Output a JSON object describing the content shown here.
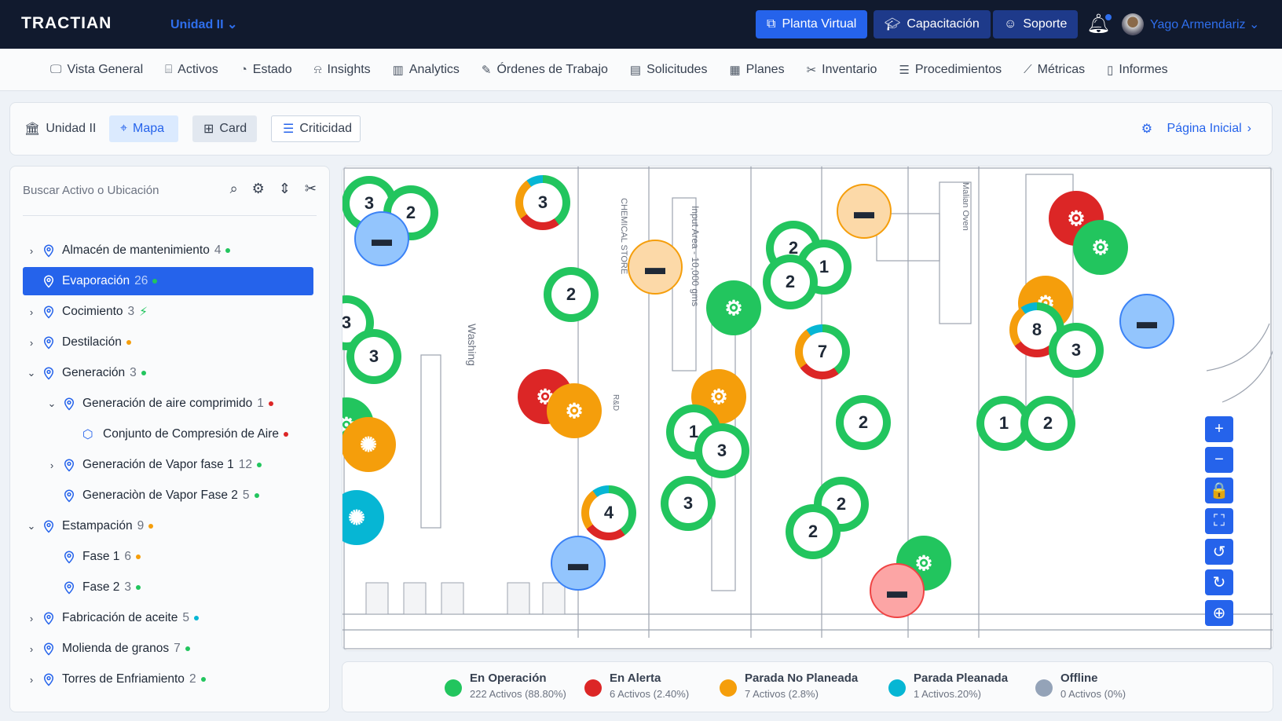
{
  "header": {
    "logo": "TRACTIAN",
    "unit": "Unidad II",
    "buttons": [
      {
        "label": "Planta Virtual",
        "color": "#2563eb"
      },
      {
        "label": "Capacitación",
        "color": "#1e3a8a"
      },
      {
        "label": "Soporte",
        "color": "#1e3a8a"
      }
    ],
    "user": "Yago Armendariz"
  },
  "nav": [
    {
      "label": "Vista General",
      "icon": "monitor-icon",
      "g": "🖵"
    },
    {
      "label": "Activos",
      "icon": "hierarchy-icon",
      "g": "⌸"
    },
    {
      "label": "Estado",
      "icon": "gauge-icon",
      "g": "◔"
    },
    {
      "label": "Insights",
      "icon": "siren-icon",
      "g": "⍾"
    },
    {
      "label": "Analytics",
      "icon": "bar-chart-icon",
      "g": "▥"
    },
    {
      "label": "Órdenes de Trabajo",
      "icon": "edit-icon",
      "g": "✎"
    },
    {
      "label": "Solicitudes",
      "icon": "clipboard-icon",
      "g": "▤"
    },
    {
      "label": "Planes",
      "icon": "calendar-clock-icon",
      "g": "▦"
    },
    {
      "label": "Inventario",
      "icon": "tools-icon",
      "g": "✂"
    },
    {
      "label": "Procedimientos",
      "icon": "checklist-icon",
      "g": "☰"
    },
    {
      "label": "Métricas",
      "icon": "line-chart-icon",
      "g": "⟋"
    },
    {
      "label": "Informes",
      "icon": "document-icon",
      "g": "▯"
    }
  ],
  "viewbar": {
    "unit": "Unidad II",
    "mapa": "Mapa",
    "card": "Card",
    "criticidad": "Criticidad",
    "home": "Página Inicial"
  },
  "sidebar": {
    "search_placeholder": "Buscar Activo o Ubicación",
    "items": [
      {
        "label": "Almacén de mantenimiento",
        "count": "4",
        "status": "green",
        "chev": "›",
        "level": 0
      },
      {
        "label": "Evaporación",
        "count": "26",
        "status": "green",
        "chev": "",
        "level": 0,
        "selected": true
      },
      {
        "label": "Cocimiento",
        "count": "3",
        "status": "bolt",
        "chev": "›",
        "level": 0
      },
      {
        "label": "Destilación",
        "count": "",
        "status": "orange",
        "chev": "›",
        "level": 0
      },
      {
        "label": "Generación",
        "count": "3",
        "status": "green",
        "chev": "⌄",
        "level": 0
      },
      {
        "label": "Generación de aire comprimido",
        "count": "1",
        "status": "red",
        "chev": "⌄",
        "level": 1
      },
      {
        "label": "Conjunto de Compresión de Aire",
        "count": "",
        "status": "red",
        "chev": "",
        "level": 2,
        "asset": true
      },
      {
        "label": "Generación de Vapor fase 1",
        "count": "12",
        "status": "green",
        "chev": "›",
        "level": 1
      },
      {
        "label": "Generaciòn de Vapor Fase 2",
        "count": "5",
        "status": "green",
        "chev": "",
        "level": 1
      },
      {
        "label": "Estampación",
        "count": "9",
        "status": "orange",
        "chev": "⌄",
        "level": 0
      },
      {
        "label": "Fase 1",
        "count": "6",
        "status": "orange",
        "chev": "",
        "level": 1
      },
      {
        "label": "Fase 2",
        "count": "3",
        "status": "green",
        "chev": "",
        "level": 1
      },
      {
        "label": "Fabricación de aceite",
        "count": "5",
        "status": "cyan",
        "chev": "›",
        "level": 0
      },
      {
        "label": "Molienda de granos",
        "count": "7",
        "status": "green",
        "chev": "›",
        "level": 0
      },
      {
        "label": "Torres de Enfriamiento",
        "count": "2",
        "status": "green",
        "chev": "›",
        "level": 0
      }
    ]
  },
  "colors": {
    "green": "#22c55e",
    "red": "#dc2626",
    "orange": "#f59e0b",
    "cyan": "#06b6d4",
    "gray": "#94a3b8",
    "blue": "#93c5fd",
    "lightorange": "#fcd9a8",
    "pink": "#fca5a5",
    "accent": "#2563eb"
  },
  "legend": [
    {
      "label": "En Operación",
      "sub": "222 Activos (88.80%)",
      "color": "#22c55e"
    },
    {
      "label": "En Alerta",
      "sub": "6 Activos (2.40%)",
      "color": "#dc2626"
    },
    {
      "label": "Parada No Planeada",
      "sub": "7 Activos (2.8%)",
      "color": "#f59e0b"
    },
    {
      "label": "Parada Pleanada",
      "sub": "1 Activos.20%)",
      "color": "#06b6d4"
    },
    {
      "label": "Offline",
      "sub": "0 Activos (0%)",
      "color": "#94a3b8"
    }
  ],
  "map": {
    "labels": [
      "Washing",
      "CHEMICAL STORE",
      "Input Area - 10,000 gms",
      "Malian Oven",
      "R&D"
    ],
    "markers": [
      {
        "n": "3",
        "s": "green"
      },
      {
        "n": "2",
        "s": "green"
      },
      {
        "n": "",
        "s": "blue",
        "i": "router"
      },
      {
        "n": "3",
        "s": "pie"
      },
      {
        "n": "",
        "s": "lightorange",
        "i": "router"
      },
      {
        "n": "2",
        "s": "green"
      },
      {
        "n": "",
        "s": "lightorange",
        "i": "router"
      },
      {
        "n": "2",
        "s": "green"
      },
      {
        "n": "1",
        "s": "green"
      },
      {
        "n": "2",
        "s": "green"
      },
      {
        "n": "",
        "s": "green",
        "i": "motor"
      },
      {
        "n": "7",
        "s": "pie"
      },
      {
        "n": "",
        "s": "red",
        "i": "motor"
      },
      {
        "n": "",
        "s": "green",
        "i": "motor"
      },
      {
        "n": "",
        "s": "orange",
        "i": "motor"
      },
      {
        "n": "8",
        "s": "pie"
      },
      {
        "n": "3",
        "s": "green"
      },
      {
        "n": "",
        "s": "blue",
        "i": "router"
      },
      {
        "n": "3",
        "s": "green"
      },
      {
        "n": "3",
        "s": "green"
      },
      {
        "n": "",
        "s": "red",
        "i": "motor"
      },
      {
        "n": "",
        "s": "orange",
        "i": "motor"
      },
      {
        "n": "",
        "s": "orange",
        "i": "motor"
      },
      {
        "n": "2",
        "s": "green"
      },
      {
        "n": "1",
        "s": "green"
      },
      {
        "n": "3",
        "s": "green"
      },
      {
        "n": "1",
        "s": "green"
      },
      {
        "n": "2",
        "s": "green"
      },
      {
        "n": "",
        "s": "green",
        "i": "motor"
      },
      {
        "n": "",
        "s": "orange",
        "i": "fan"
      },
      {
        "n": "",
        "s": "cyan",
        "i": "fan"
      },
      {
        "n": "4",
        "s": "pie"
      },
      {
        "n": "3",
        "s": "green"
      },
      {
        "n": "2",
        "s": "green"
      },
      {
        "n": "2",
        "s": "green"
      },
      {
        "n": "",
        "s": "blue",
        "i": "router"
      },
      {
        "n": "",
        "s": "green",
        "i": "motor"
      },
      {
        "n": "",
        "s": "pink",
        "i": "router"
      }
    ]
  },
  "map_controls": [
    {
      "name": "zoom-in-button",
      "g": "+"
    },
    {
      "name": "zoom-out-button",
      "g": "−"
    },
    {
      "name": "lock-button",
      "g": "🔒"
    },
    {
      "name": "fullscreen-button",
      "g": "⛶"
    },
    {
      "name": "rotate-left-button",
      "g": "↺"
    },
    {
      "name": "rotate-right-button",
      "g": "↻"
    },
    {
      "name": "add-button",
      "g": "⊕"
    }
  ]
}
